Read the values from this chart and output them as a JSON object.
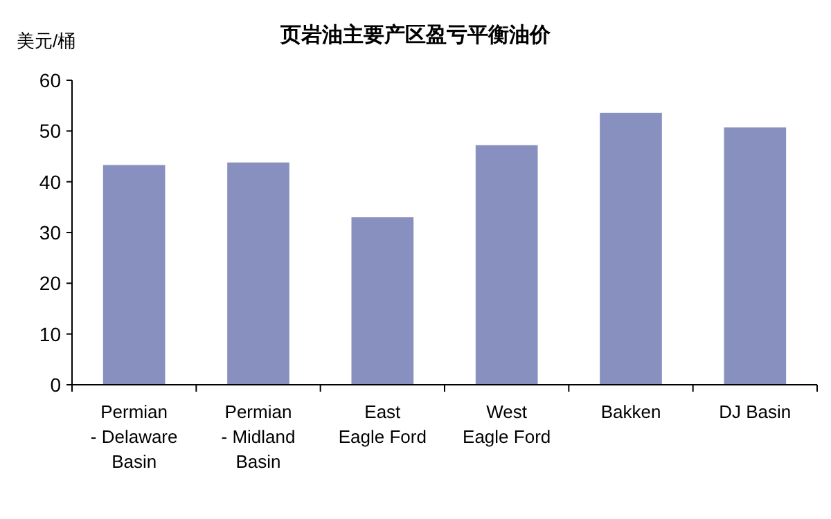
{
  "chart_data": {
    "type": "bar",
    "title": "页岩油主要产区盈亏平衡油价",
    "ylabel": "美元/桶",
    "categories": [
      "Permian - Delaware Basin",
      "Permian - Midland Basin",
      "East Eagle Ford",
      "West Eagle Ford",
      "Bakken",
      "DJ Basin"
    ],
    "values": [
      43.3,
      43.8,
      33.0,
      47.2,
      53.6,
      50.7
    ],
    "color": "#8890c0",
    "ylim": [
      0,
      60
    ],
    "yticks": [
      0,
      10,
      20,
      30,
      40,
      50,
      60
    ]
  }
}
